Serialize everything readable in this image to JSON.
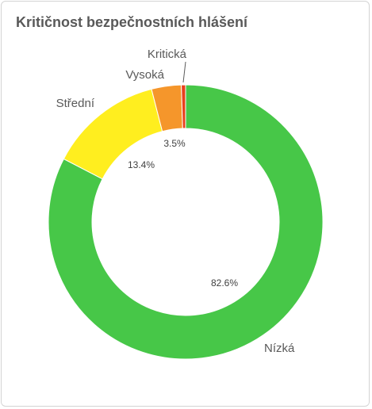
{
  "panel": {
    "title": "Kritičnost bezpečnostních hlášení"
  },
  "chart_data": {
    "type": "pie",
    "donut": true,
    "title": "Kritičnost bezpečnostních hlášení",
    "slices": [
      {
        "label": "Nízká",
        "value": 82.6,
        "value_label": "82.6%",
        "color": "#47c748"
      },
      {
        "label": "Střední",
        "value": 13.4,
        "value_label": "13.4%",
        "color": "#ffee1f"
      },
      {
        "label": "Vysoká",
        "value": 3.5,
        "value_label": "3.5%",
        "color": "#f5962b"
      },
      {
        "label": "Kritická",
        "value": 0.5,
        "value_label": "",
        "color": "#e8401c"
      }
    ],
    "legend": "none"
  }
}
